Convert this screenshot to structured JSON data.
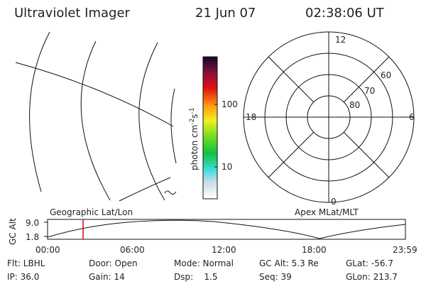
{
  "header": {
    "title": "Ultraviolet Imager",
    "date": "21 Jun 07",
    "time": "02:38:06 UT"
  },
  "colorbar": {
    "unit": [
      "photon cm",
      "-2",
      "s",
      "-1"
    ],
    "ticks": [
      "100",
      "10"
    ]
  },
  "polar": {
    "mlt": [
      "12",
      "6",
      "0",
      "18"
    ],
    "mlat": [
      "60",
      "70",
      "80"
    ]
  },
  "alt_plot": {
    "ylabel": "GC Alt",
    "yticks": [
      "9.0",
      "1.8"
    ],
    "left_label": "Geographic Lat/Lon",
    "right_label": "Apex MLat/MLT",
    "xticks": [
      "00:00",
      "06:00",
      "12:00",
      "18:00",
      "23:59"
    ]
  },
  "status": [
    [
      "Flt: LBHL",
      "Door: Open",
      "Mode: Normal",
      "GC Alt: 5.3 Re",
      "GLat: -56.7"
    ],
    [
      "IP: 36.0",
      "Gain: 14",
      "Dsp:    1.5",
      "Seq: 39",
      "GLon: 213.7"
    ]
  ]
}
